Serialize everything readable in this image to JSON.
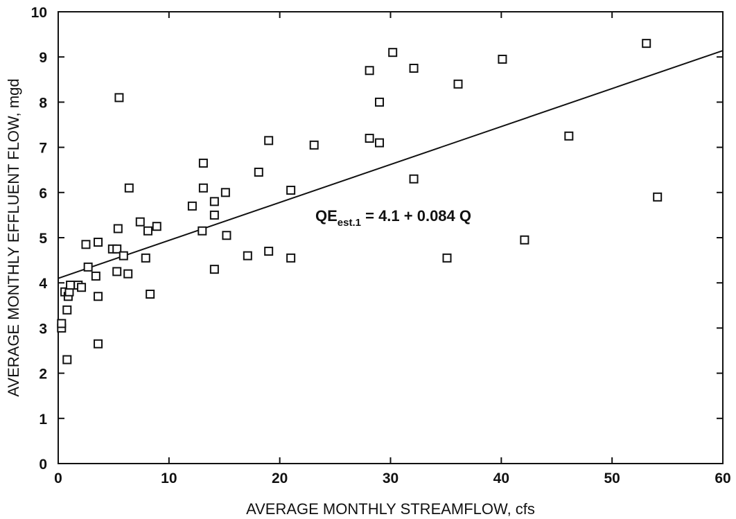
{
  "chart_data": {
    "type": "scatter",
    "xlabel": "AVERAGE MONTHLY STREAMFLOW, cfs",
    "ylabel": "AVERAGE MONTHLY EFFLUENT FLOW, mgd",
    "xlim": [
      0,
      60
    ],
    "ylim": [
      0,
      10
    ],
    "x_ticks": [
      "0",
      "10",
      "20",
      "30",
      "40",
      "50",
      "60"
    ],
    "y_ticks": [
      "0",
      "1",
      "2",
      "3",
      "4",
      "5",
      "6",
      "7",
      "8",
      "9",
      "10"
    ],
    "grid": false,
    "marker": "open-square",
    "annotation": {
      "main": "QE",
      "subscript": "est.1",
      "rest": " = 4.1 + 0.084 Q"
    },
    "regression_line": {
      "intercept": 4.1,
      "slope": 0.084
    },
    "points": [
      [
        0.3,
        3.0
      ],
      [
        0.3,
        3.1
      ],
      [
        0.6,
        3.8
      ],
      [
        0.8,
        2.3
      ],
      [
        0.8,
        3.4
      ],
      [
        0.9,
        3.7
      ],
      [
        1.0,
        3.8
      ],
      [
        1.1,
        3.95
      ],
      [
        1.8,
        3.95
      ],
      [
        2.1,
        3.9
      ],
      [
        2.5,
        4.85
      ],
      [
        2.7,
        4.35
      ],
      [
        3.4,
        4.15
      ],
      [
        3.6,
        4.9
      ],
      [
        3.6,
        3.7
      ],
      [
        3.6,
        2.65
      ],
      [
        4.9,
        4.75
      ],
      [
        5.3,
        4.75
      ],
      [
        5.3,
        4.25
      ],
      [
        5.4,
        5.2
      ],
      [
        5.5,
        8.1
      ],
      [
        5.9,
        4.6
      ],
      [
        6.3,
        4.2
      ],
      [
        6.4,
        6.1
      ],
      [
        7.4,
        5.35
      ],
      [
        7.9,
        4.55
      ],
      [
        8.1,
        5.15
      ],
      [
        8.3,
        3.75
      ],
      [
        8.9,
        5.25
      ],
      [
        12.1,
        5.7
      ],
      [
        13.0,
        5.15
      ],
      [
        13.1,
        6.65
      ],
      [
        13.1,
        6.1
      ],
      [
        14.1,
        5.8
      ],
      [
        14.1,
        5.5
      ],
      [
        14.1,
        4.3
      ],
      [
        15.1,
        6.0
      ],
      [
        15.2,
        5.05
      ],
      [
        17.1,
        4.6
      ],
      [
        18.1,
        6.45
      ],
      [
        19.0,
        7.15
      ],
      [
        19.0,
        4.7
      ],
      [
        21.0,
        6.05
      ],
      [
        21.0,
        4.55
      ],
      [
        23.1,
        7.05
      ],
      [
        28.1,
        8.7
      ],
      [
        28.1,
        7.2
      ],
      [
        29.0,
        8.0
      ],
      [
        29.0,
        7.1
      ],
      [
        30.2,
        9.1
      ],
      [
        32.1,
        8.75
      ],
      [
        32.1,
        6.3
      ],
      [
        35.1,
        4.55
      ],
      [
        36.1,
        8.4
      ],
      [
        40.1,
        8.95
      ],
      [
        42.1,
        4.95
      ],
      [
        46.1,
        7.25
      ],
      [
        53.1,
        9.3
      ],
      [
        54.1,
        5.9
      ]
    ]
  }
}
